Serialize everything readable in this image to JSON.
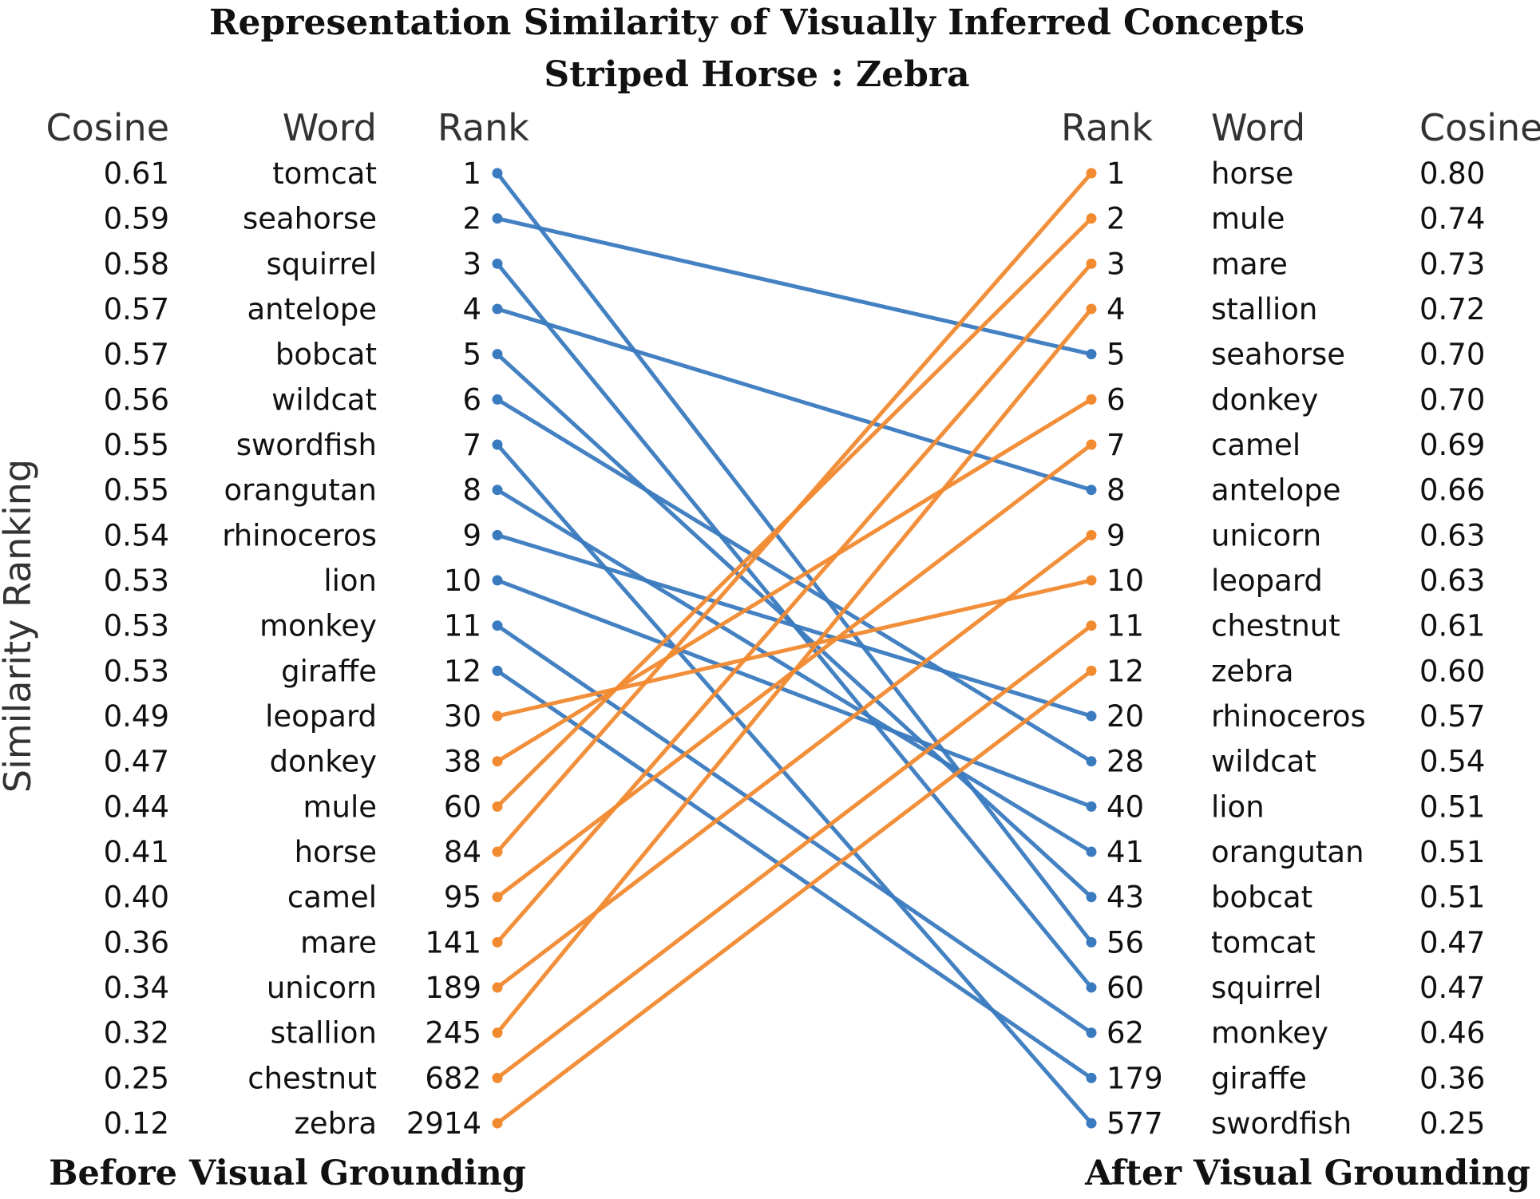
{
  "title": "Representation Similarity of Visually Inferred Concepts",
  "subtitle": "Striped Horse : Zebra",
  "ylabel": "Similarity Ranking",
  "before": {
    "label": "Before Visual Grounding",
    "headers": {
      "cosine": "Cosine",
      "word": "Word",
      "rank": "Rank"
    },
    "rows": [
      {
        "cosine": "0.61",
        "word": "tomcat",
        "rank": "1",
        "group": "decreased"
      },
      {
        "cosine": "0.59",
        "word": "seahorse",
        "rank": "2",
        "group": "decreased"
      },
      {
        "cosine": "0.58",
        "word": "squirrel",
        "rank": "3",
        "group": "decreased"
      },
      {
        "cosine": "0.57",
        "word": "antelope",
        "rank": "4",
        "group": "decreased"
      },
      {
        "cosine": "0.57",
        "word": "bobcat",
        "rank": "5",
        "group": "decreased"
      },
      {
        "cosine": "0.56",
        "word": "wildcat",
        "rank": "6",
        "group": "decreased"
      },
      {
        "cosine": "0.55",
        "word": "swordfish",
        "rank": "7",
        "group": "decreased"
      },
      {
        "cosine": "0.55",
        "word": "orangutan",
        "rank": "8",
        "group": "decreased"
      },
      {
        "cosine": "0.54",
        "word": "rhinoceros",
        "rank": "9",
        "group": "decreased"
      },
      {
        "cosine": "0.53",
        "word": "lion",
        "rank": "10",
        "group": "decreased"
      },
      {
        "cosine": "0.53",
        "word": "monkey",
        "rank": "11",
        "group": "decreased"
      },
      {
        "cosine": "0.53",
        "word": "giraffe",
        "rank": "12",
        "group": "decreased"
      },
      {
        "cosine": "0.49",
        "word": "leopard",
        "rank": "30",
        "group": "increased"
      },
      {
        "cosine": "0.47",
        "word": "donkey",
        "rank": "38",
        "group": "increased"
      },
      {
        "cosine": "0.44",
        "word": "mule",
        "rank": "60",
        "group": "increased"
      },
      {
        "cosine": "0.41",
        "word": "horse",
        "rank": "84",
        "group": "increased"
      },
      {
        "cosine": "0.40",
        "word": "camel",
        "rank": "95",
        "group": "increased"
      },
      {
        "cosine": "0.36",
        "word": "mare",
        "rank": "141",
        "group": "increased"
      },
      {
        "cosine": "0.34",
        "word": "unicorn",
        "rank": "189",
        "group": "increased"
      },
      {
        "cosine": "0.32",
        "word": "stallion",
        "rank": "245",
        "group": "increased"
      },
      {
        "cosine": "0.25",
        "word": "chestnut",
        "rank": "682",
        "group": "increased"
      },
      {
        "cosine": "0.12",
        "word": "zebra",
        "rank": "2914",
        "group": "increased",
        "highlight": true
      }
    ]
  },
  "after": {
    "label": "After Visual Grounding",
    "headers": {
      "rank": "Rank",
      "word": "Word",
      "cosine": "Cosine"
    },
    "rows": [
      {
        "rank": "1",
        "word": "horse",
        "cosine": "0.80",
        "group": "increased"
      },
      {
        "rank": "2",
        "word": "mule",
        "cosine": "0.74",
        "group": "increased"
      },
      {
        "rank": "3",
        "word": "mare",
        "cosine": "0.73",
        "group": "increased"
      },
      {
        "rank": "4",
        "word": "stallion",
        "cosine": "0.72",
        "group": "increased"
      },
      {
        "rank": "5",
        "word": "seahorse",
        "cosine": "0.70",
        "group": "decreased"
      },
      {
        "rank": "6",
        "word": "donkey",
        "cosine": "0.70",
        "group": "increased"
      },
      {
        "rank": "7",
        "word": "camel",
        "cosine": "0.69",
        "group": "increased"
      },
      {
        "rank": "8",
        "word": "antelope",
        "cosine": "0.66",
        "group": "decreased"
      },
      {
        "rank": "9",
        "word": "unicorn",
        "cosine": "0.63",
        "group": "increased"
      },
      {
        "rank": "10",
        "word": "leopard",
        "cosine": "0.63",
        "group": "increased"
      },
      {
        "rank": "11",
        "word": "chestnut",
        "cosine": "0.61",
        "group": "increased"
      },
      {
        "rank": "12",
        "word": "zebra",
        "cosine": "0.60",
        "group": "increased",
        "highlight": true
      },
      {
        "rank": "20",
        "word": "rhinoceros",
        "cosine": "0.57",
        "group": "decreased"
      },
      {
        "rank": "28",
        "word": "wildcat",
        "cosine": "0.54",
        "group": "decreased"
      },
      {
        "rank": "40",
        "word": "lion",
        "cosine": "0.51",
        "group": "decreased"
      },
      {
        "rank": "41",
        "word": "orangutan",
        "cosine": "0.51",
        "group": "decreased"
      },
      {
        "rank": "43",
        "word": "bobcat",
        "cosine": "0.51",
        "group": "decreased"
      },
      {
        "rank": "56",
        "word": "tomcat",
        "cosine": "0.47",
        "group": "decreased"
      },
      {
        "rank": "60",
        "word": "squirrel",
        "cosine": "0.47",
        "group": "decreased"
      },
      {
        "rank": "62",
        "word": "monkey",
        "cosine": "0.46",
        "group": "decreased"
      },
      {
        "rank": "179",
        "word": "giraffe",
        "cosine": "0.36",
        "group": "decreased"
      },
      {
        "rank": "577",
        "word": "swordfish",
        "cosine": "0.25",
        "group": "decreased"
      }
    ]
  },
  "colors": {
    "decreased": "#3a7bbf",
    "increased": "#f28a30",
    "highlight": "#e8111b",
    "text": "#111111"
  },
  "chart_data": {
    "type": "slope",
    "title": "Representation Similarity of Visually Inferred Concepts",
    "subtitle": "Striped Horse : Zebra",
    "ylabel": "Similarity Ranking",
    "before_label": "Before Visual Grounding",
    "after_label": "After Visual Grounding",
    "series": [
      {
        "name": "decreased",
        "words": [
          "tomcat",
          "seahorse",
          "squirrel",
          "antelope",
          "bobcat",
          "wildcat",
          "swordfish",
          "orangutan",
          "rhinoceros",
          "lion",
          "monkey",
          "giraffe"
        ]
      },
      {
        "name": "increased",
        "words": [
          "leopard",
          "donkey",
          "mule",
          "horse",
          "camel",
          "mare",
          "unicorn",
          "stallion",
          "chestnut",
          "zebra"
        ]
      }
    ],
    "before_rank": {
      "tomcat": 1,
      "seahorse": 2,
      "squirrel": 3,
      "antelope": 4,
      "bobcat": 5,
      "wildcat": 6,
      "swordfish": 7,
      "orangutan": 8,
      "rhinoceros": 9,
      "lion": 10,
      "monkey": 11,
      "giraffe": 12,
      "leopard": 30,
      "donkey": 38,
      "mule": 60,
      "horse": 84,
      "camel": 95,
      "mare": 141,
      "unicorn": 189,
      "stallion": 245,
      "chestnut": 682,
      "zebra": 2914
    },
    "after_rank": {
      "horse": 1,
      "mule": 2,
      "mare": 3,
      "stallion": 4,
      "seahorse": 5,
      "donkey": 6,
      "camel": 7,
      "antelope": 8,
      "unicorn": 9,
      "leopard": 10,
      "chestnut": 11,
      "zebra": 12,
      "rhinoceros": 20,
      "wildcat": 28,
      "lion": 40,
      "orangutan": 41,
      "bobcat": 43,
      "tomcat": 56,
      "squirrel": 60,
      "monkey": 62,
      "giraffe": 179,
      "swordfish": 577
    },
    "before_cosine": {
      "tomcat": 0.61,
      "seahorse": 0.59,
      "squirrel": 0.58,
      "antelope": 0.57,
      "bobcat": 0.57,
      "wildcat": 0.56,
      "swordfish": 0.55,
      "orangutan": 0.55,
      "rhinoceros": 0.54,
      "lion": 0.53,
      "monkey": 0.53,
      "giraffe": 0.53,
      "leopard": 0.49,
      "donkey": 0.47,
      "mule": 0.44,
      "horse": 0.41,
      "camel": 0.4,
      "mare": 0.36,
      "unicorn": 0.34,
      "stallion": 0.32,
      "chestnut": 0.25,
      "zebra": 0.12
    },
    "after_cosine": {
      "horse": 0.8,
      "mule": 0.74,
      "mare": 0.73,
      "stallion": 0.72,
      "seahorse": 0.7,
      "donkey": 0.7,
      "camel": 0.69,
      "antelope": 0.66,
      "unicorn": 0.63,
      "leopard": 0.63,
      "chestnut": 0.61,
      "zebra": 0.6,
      "rhinoceros": 0.57,
      "wildcat": 0.54,
      "lion": 0.51,
      "orangutan": 0.51,
      "bobcat": 0.51,
      "tomcat": 0.47,
      "squirrel": 0.47,
      "monkey": 0.46,
      "giraffe": 0.36,
      "swordfish": 0.25
    }
  }
}
